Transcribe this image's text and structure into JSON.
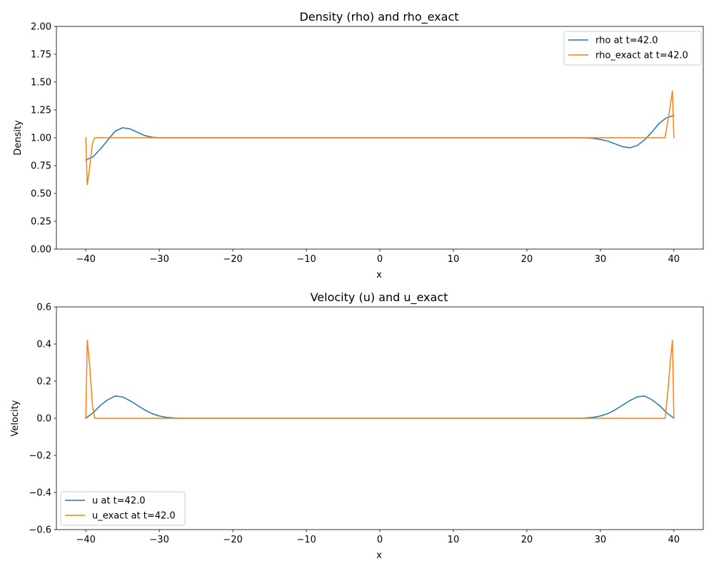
{
  "chart_data": [
    {
      "type": "line",
      "title": "Density (rho) and rho_exact",
      "xlabel": "x",
      "ylabel": "Density",
      "xlim": [
        -44,
        44
      ],
      "ylim": [
        0,
        2
      ],
      "xticks": [
        -40,
        -30,
        -20,
        -10,
        0,
        10,
        20,
        30,
        40
      ],
      "xtick_labels": [
        "−40",
        "−30",
        "−20",
        "−10",
        "0",
        "10",
        "20",
        "30",
        "40"
      ],
      "yticks": [
        0,
        0.25,
        0.5,
        0.75,
        1.0,
        1.25,
        1.5,
        1.75,
        2.0
      ],
      "ytick_labels": [
        "0.00",
        "0.25",
        "0.50",
        "0.75",
        "1.00",
        "1.25",
        "1.50",
        "1.75",
        "2.00"
      ],
      "grid": false,
      "legend_position": "top-right",
      "series": [
        {
          "name": "rho at t=42.0",
          "color": "#1f77b4",
          "x": [
            -40,
            -39,
            -38,
            -37,
            -36,
            -35,
            -34,
            -33,
            -32,
            -31,
            -30,
            -29,
            -28,
            -26,
            -20,
            0,
            20,
            27,
            28,
            29,
            30,
            31,
            32,
            33,
            34,
            35,
            36,
            37,
            38,
            39,
            40
          ],
          "y": [
            0.8,
            0.83,
            0.9,
            0.98,
            1.06,
            1.09,
            1.08,
            1.05,
            1.02,
            1.005,
            1.0,
            1.0,
            1.0,
            1.0,
            1.0,
            1.0,
            1.0,
            1.0,
            0.998,
            0.995,
            0.985,
            0.97,
            0.945,
            0.92,
            0.91,
            0.93,
            0.98,
            1.05,
            1.13,
            1.18,
            1.2
          ]
        },
        {
          "name": "rho_exact at t=42.0",
          "color": "#ff7f0e",
          "x": [
            -40,
            -39.8,
            -39.5,
            -39.1,
            -38.8,
            -38,
            0,
            38,
            38.8,
            39.3,
            39.8,
            40
          ],
          "y": [
            1.0,
            0.58,
            0.72,
            0.95,
            1.0,
            1.0,
            1.0,
            1.0,
            1.0,
            1.2,
            1.42,
            1.0
          ]
        }
      ]
    },
    {
      "type": "line",
      "title": "Velocity (u) and u_exact",
      "xlabel": "x",
      "ylabel": "Velocity",
      "xlim": [
        -44,
        44
      ],
      "ylim": [
        -0.6,
        0.6
      ],
      "xticks": [
        -40,
        -30,
        -20,
        -10,
        0,
        10,
        20,
        30,
        40
      ],
      "xtick_labels": [
        "−40",
        "−30",
        "−20",
        "−10",
        "0",
        "10",
        "20",
        "30",
        "40"
      ],
      "yticks": [
        -0.6,
        -0.4,
        -0.2,
        0.0,
        0.2,
        0.4,
        0.6
      ],
      "ytick_labels": [
        "−0.6",
        "−0.4",
        "−0.2",
        "0.0",
        "0.2",
        "0.4",
        "0.6"
      ],
      "grid": false,
      "legend_position": "bottom-left",
      "series": [
        {
          "name": "u at t=42.0",
          "color": "#1f77b4",
          "x": [
            -40,
            -39,
            -38,
            -37,
            -36,
            -35,
            -34,
            -33,
            -32,
            -31,
            -30,
            -29,
            -28,
            -27,
            -20,
            0,
            20,
            27,
            28,
            29,
            30,
            31,
            32,
            33,
            34,
            35,
            36,
            37,
            38,
            39,
            40
          ],
          "y": [
            0.0,
            0.03,
            0.07,
            0.1,
            0.12,
            0.115,
            0.095,
            0.07,
            0.045,
            0.025,
            0.012,
            0.005,
            0.002,
            0.0,
            0.0,
            0.0,
            0.0,
            0.0,
            0.002,
            0.005,
            0.012,
            0.025,
            0.045,
            0.07,
            0.095,
            0.115,
            0.12,
            0.1,
            0.07,
            0.03,
            0.0
          ]
        },
        {
          "name": "u_exact at t=42.0",
          "color": "#ff7f0e",
          "x": [
            -40,
            -39.8,
            -39.5,
            -39.1,
            -38.8,
            -38,
            0,
            38,
            38.8,
            39.2,
            39.5,
            39.8,
            40
          ],
          "y": [
            0.0,
            0.42,
            0.3,
            0.07,
            0.0,
            0.0,
            0.0,
            0.0,
            0.0,
            0.15,
            0.3,
            0.42,
            0.0
          ]
        }
      ]
    }
  ]
}
